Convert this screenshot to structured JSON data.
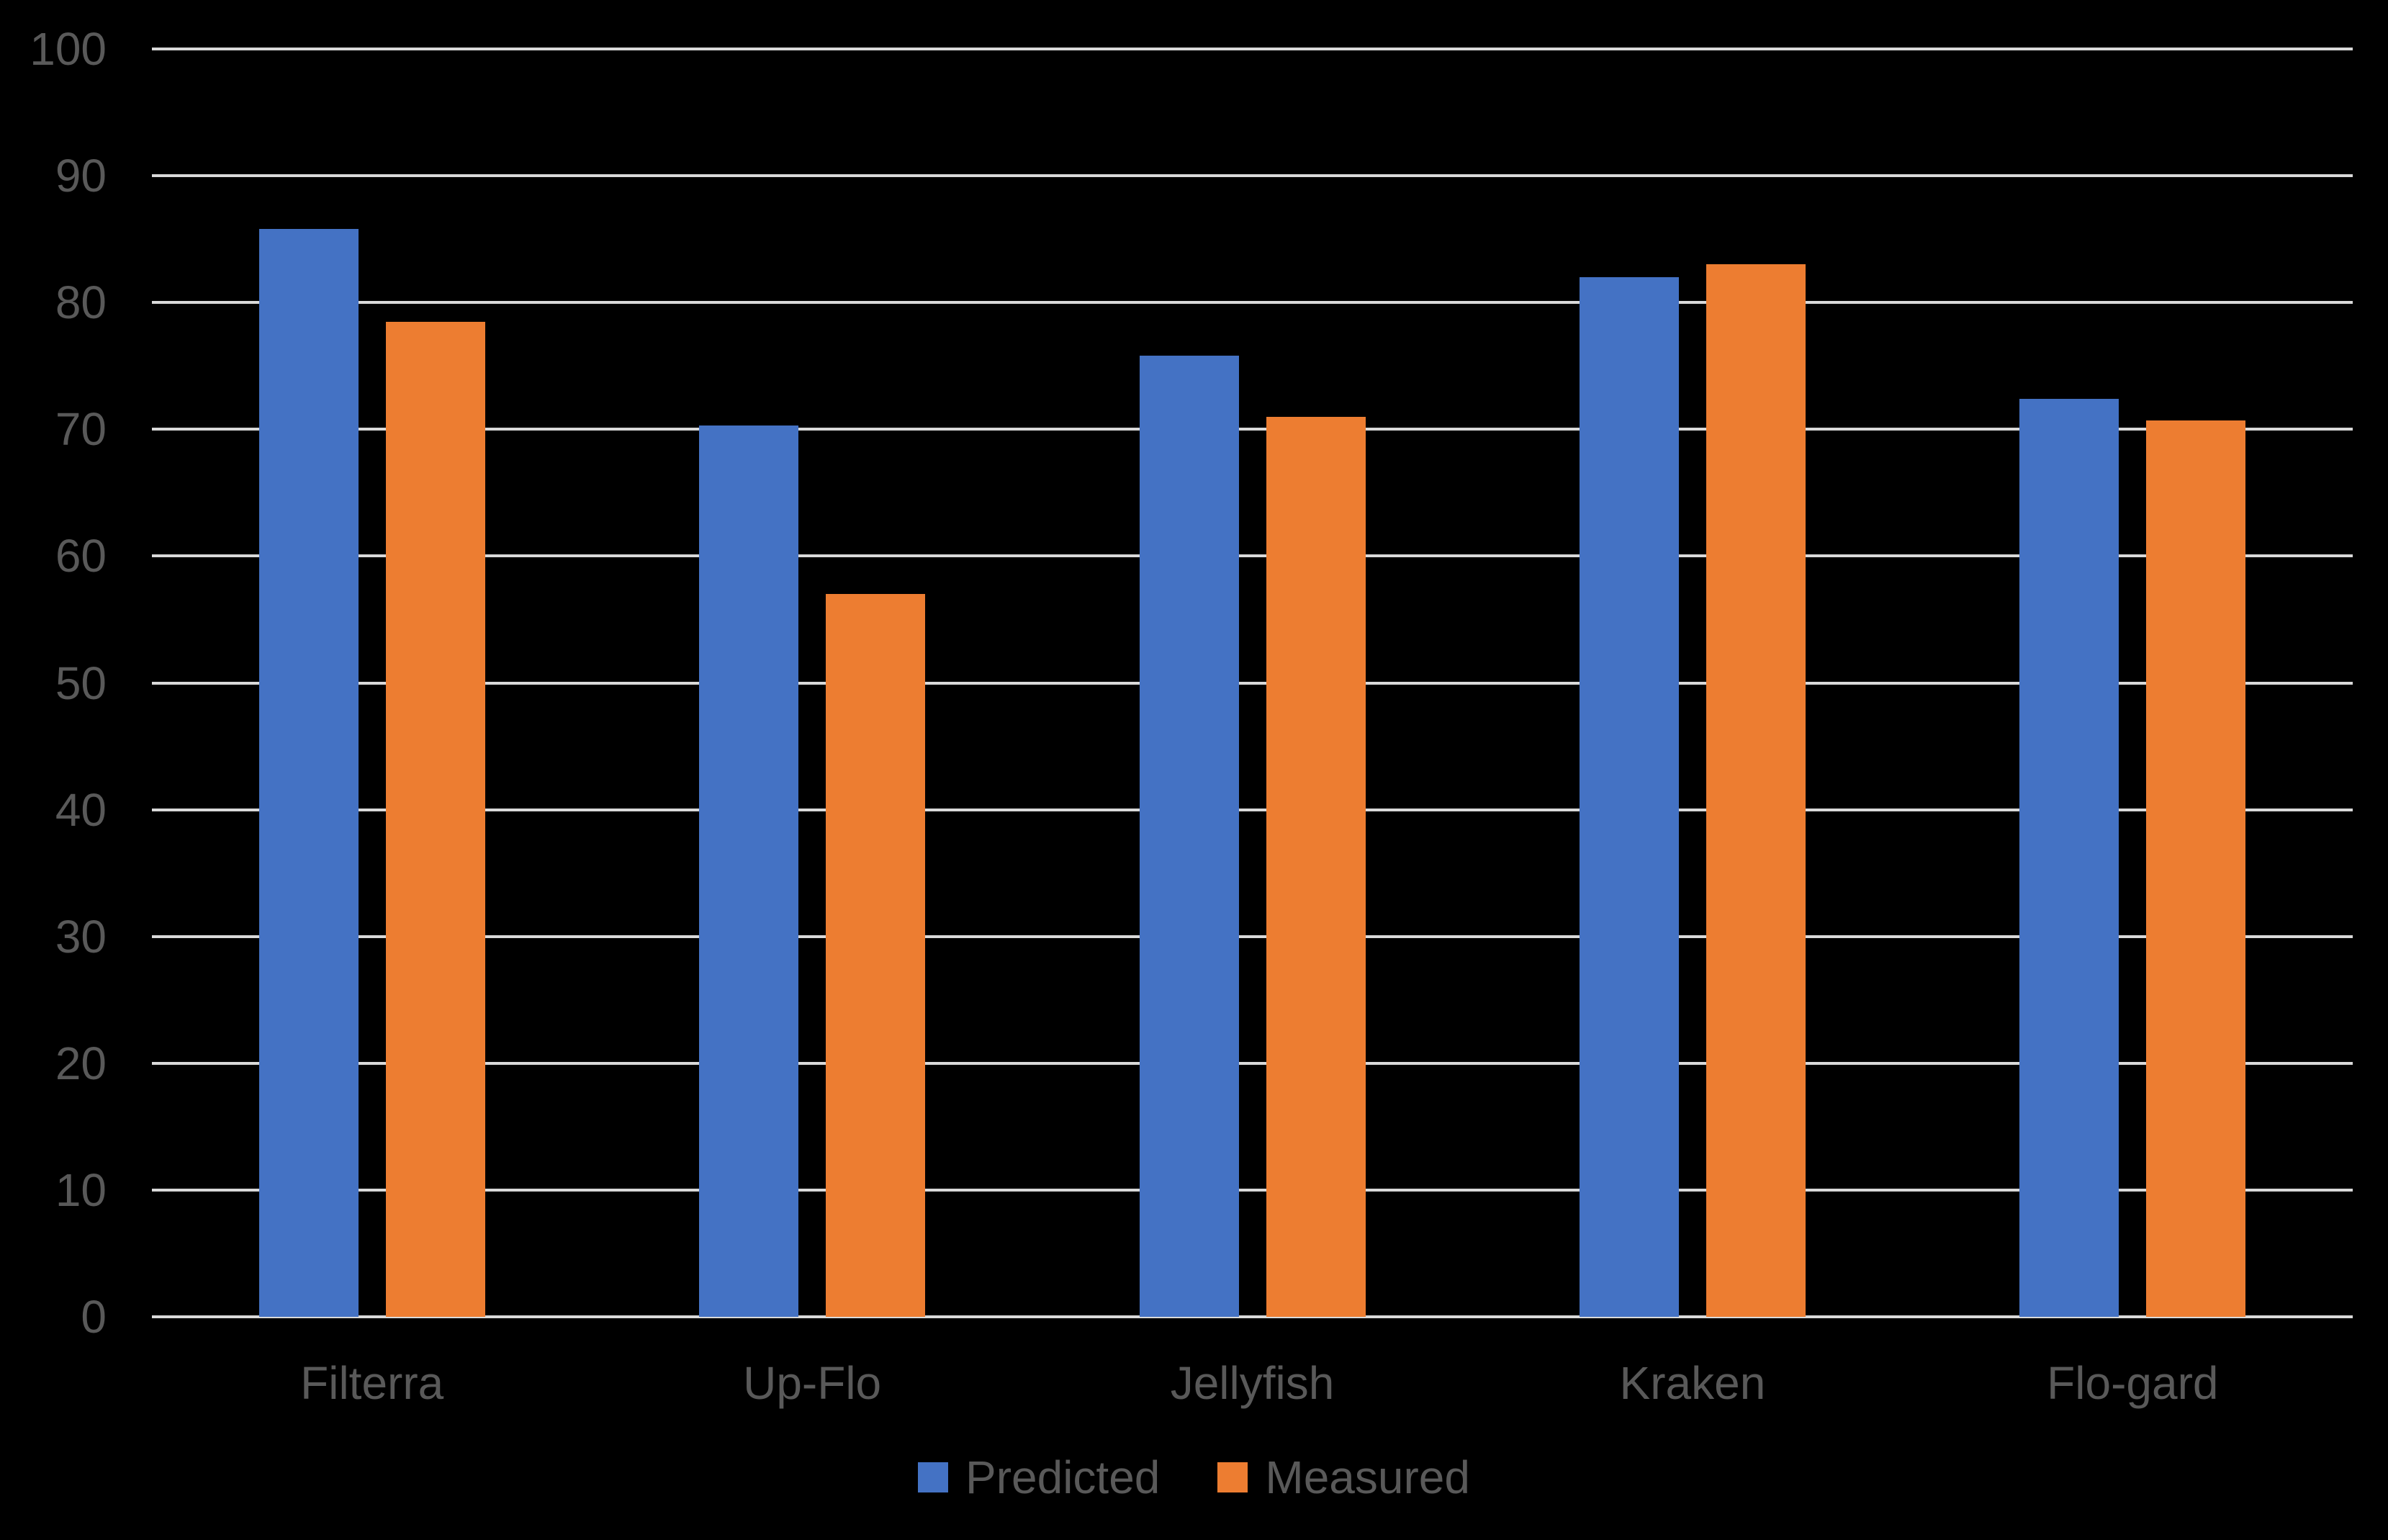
{
  "chart_data": {
    "type": "bar",
    "title": "",
    "xlabel": "",
    "ylabel": "",
    "categories": [
      "Filterra",
      "Up-Flo",
      "Jellyfish",
      "Kraken",
      "Flo-gard"
    ],
    "series": [
      {
        "name": "Predicted",
        "color": "#4472C4",
        "values": [
          85.8,
          70.3,
          75.8,
          82,
          72.4
        ]
      },
      {
        "name": "Measured",
        "color": "#ED7D31",
        "values": [
          78.5,
          57,
          71,
          83,
          70.7
        ]
      }
    ],
    "ylim": [
      0,
      100
    ],
    "yticks": [
      0,
      10,
      20,
      30,
      40,
      50,
      60,
      70,
      80,
      90,
      100
    ],
    "grid": true,
    "legend_position": "bottom"
  },
  "style": {
    "background_color": "#000000",
    "gridline_color": "#D9D9D9",
    "label_color": "#595959"
  }
}
